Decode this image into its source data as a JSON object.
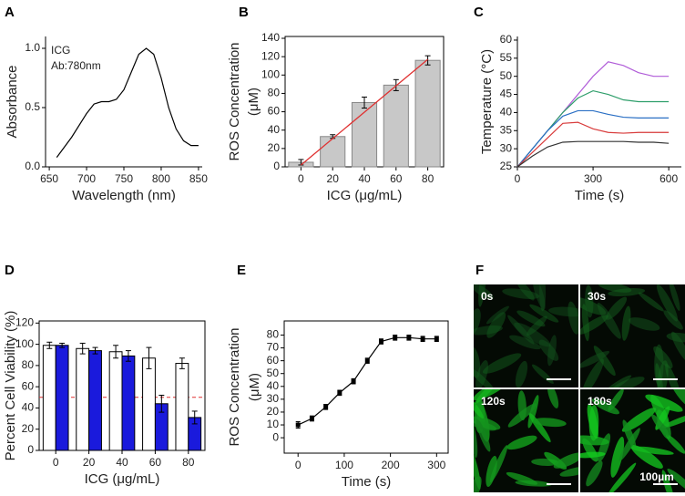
{
  "chart_data": [
    {
      "panel": "A",
      "type": "line",
      "xlabel": "Wavelength (nm)",
      "ylabel": [
        "Absorbance"
      ],
      "annotations": [
        "ICG",
        "Ab:780nm"
      ],
      "x": [
        660,
        680,
        700,
        710,
        720,
        730,
        740,
        750,
        760,
        770,
        780,
        790,
        800,
        810,
        820,
        830,
        840,
        850
      ],
      "series": [
        {
          "color": "#000000",
          "values": [
            0.08,
            0.25,
            0.45,
            0.53,
            0.55,
            0.55,
            0.57,
            0.65,
            0.8,
            0.95,
            1.0,
            0.95,
            0.75,
            0.5,
            0.32,
            0.22,
            0.18,
            0.18
          ]
        }
      ],
      "xlim": [
        645,
        855
      ],
      "ylim": [
        0,
        1.1
      ],
      "xticks": [
        650,
        700,
        750,
        800,
        850
      ],
      "yticks": [
        {
          "value": 0,
          "label": "0.0"
        },
        {
          "value": 0.5,
          "label": "0.5"
        },
        {
          "value": 1,
          "label": "1.0"
        }
      ],
      "box": false
    },
    {
      "panel": "B",
      "type": "bar",
      "xlabel": "ICG (μg/mL)",
      "ylabel": [
        "ROS Concentration",
        "(μM)"
      ],
      "categories": [
        "0",
        "20",
        "40",
        "60",
        "80"
      ],
      "series": [
        {
          "color": "#c8c8c8",
          "values": [
            5,
            33,
            70,
            89,
            116
          ],
          "errors": [
            3,
            2,
            6,
            6,
            5
          ]
        }
      ],
      "fit": {
        "color": "#e03030",
        "x": [
          0,
          80
        ],
        "values": [
          2,
          117
        ]
      },
      "ylim": [
        0,
        142
      ],
      "yticks": [
        0,
        20,
        40,
        60,
        80,
        100,
        120,
        140
      ],
      "box": true
    },
    {
      "panel": "C",
      "type": "line",
      "xlabel": "Time (s)",
      "ylabel": [
        "Temperature (°C)"
      ],
      "x": [
        0,
        60,
        120,
        180,
        240,
        300,
        360,
        420,
        480,
        540,
        600
      ],
      "series": [
        {
          "color": "#b05cd8",
          "values": [
            25,
            30,
            35,
            40,
            45,
            50,
            54,
            53,
            51,
            50,
            50
          ]
        },
        {
          "color": "#2e9e6a",
          "values": [
            25,
            30,
            35,
            40,
            44,
            46,
            45,
            43.5,
            43,
            43,
            43
          ]
        },
        {
          "color": "#2a6fc4",
          "values": [
            25,
            30,
            35,
            39,
            40.5,
            40.5,
            39.5,
            38.7,
            38.5,
            38.5,
            38.5
          ]
        },
        {
          "color": "#d83a3a",
          "values": [
            25,
            29,
            33,
            37,
            37.3,
            35.5,
            34.5,
            34.3,
            34.5,
            34.5,
            34.5
          ]
        },
        {
          "color": "#333333",
          "values": [
            25,
            28,
            30.5,
            31.8,
            32,
            32,
            32,
            32,
            31.8,
            31.8,
            31.5
          ]
        }
      ],
      "xlim": [
        0,
        650
      ],
      "ylim": [
        25,
        61
      ],
      "xticks": [
        0,
        300,
        600
      ],
      "yticks": [
        25,
        30,
        35,
        40,
        45,
        50,
        55,
        60
      ],
      "box": false
    },
    {
      "panel": "D",
      "type": "bar",
      "xlabel": "ICG (μg/mL)",
      "ylabel": [
        "Percent Cell Viability (%)"
      ],
      "categories": [
        "0",
        "20",
        "40",
        "60",
        "80"
      ],
      "series": [
        {
          "color": "#ffffff",
          "values": [
            99,
            96,
            93,
            87,
            82
          ],
          "errors": [
            3,
            5,
            6,
            10,
            5
          ]
        },
        {
          "color": "#1a1adc",
          "values": [
            99,
            94,
            89,
            44,
            31
          ],
          "errors": [
            2,
            3,
            5,
            8,
            6
          ]
        }
      ],
      "hline": {
        "value": 50,
        "color": "#e03030"
      },
      "ylim": [
        0,
        122
      ],
      "yticks": [
        0,
        20,
        40,
        60,
        80,
        100,
        120
      ],
      "box": true
    },
    {
      "panel": "E",
      "type": "line",
      "xlabel": "Time (s)",
      "ylabel": [
        "ROS Concentration",
        "(μM)"
      ],
      "markers": true,
      "x": [
        0,
        30,
        60,
        90,
        120,
        150,
        180,
        210,
        240,
        270,
        300
      ],
      "series": [
        {
          "color": "#000000",
          "values": [
            10,
            15,
            24,
            35,
            44,
            60,
            75,
            78,
            78,
            77,
            77
          ],
          "errors": [
            2.5,
            2,
            2,
            2,
            2,
            2,
            2,
            2,
            2,
            2,
            2
          ]
        }
      ],
      "xlim": [
        -30,
        325
      ],
      "ylim": [
        -12,
        91
      ],
      "xticks": [
        0,
        100,
        200,
        300
      ],
      "yticks": [
        0,
        10,
        20,
        30,
        40,
        50,
        60,
        70,
        80
      ],
      "box": true
    }
  ],
  "images": {
    "panel": "F",
    "tiles": [
      "0s",
      "30s",
      "120s",
      "180s"
    ],
    "scale_label": "100µm"
  }
}
